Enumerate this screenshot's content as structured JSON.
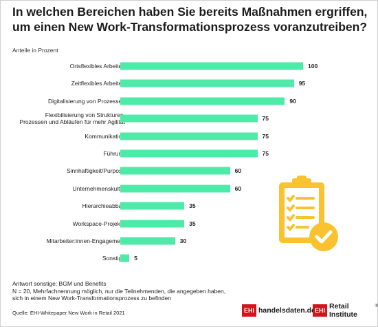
{
  "title_line1": "In welchen Bereichen haben Sie bereits Maßnahmen ergriffen,",
  "title_line2": "um einen New Work-Transformationsprozess voranzutreiben?",
  "unit_label": "Anteile in Prozent",
  "colors": {
    "bar": "#4eeaa8",
    "accent": "#f9c22e",
    "brand_red": "#d7121a"
  },
  "chart_data": {
    "type": "bar",
    "orientation": "horizontal",
    "ylabel": "Anteile in Prozent",
    "categories": [
      [
        "Ortsflexibles Arbeiten"
      ],
      [
        "Zeitflexibles Arbeiten"
      ],
      [
        "Digitalisierung von Prozessen"
      ],
      [
        "Flexibilisierung von Strukturen,",
        "Prozessen und Abläufen für mehr Agilität"
      ],
      [
        "Kommunikation"
      ],
      [
        "Führung"
      ],
      [
        "Sinnhaftigkeit/Purpose"
      ],
      [
        "Unternehmenskultur"
      ],
      [
        "Hierarchieabbau"
      ],
      [
        "Workspace-Projekte"
      ],
      [
        "Mitarbeiter:innen-Engagement"
      ],
      [
        "Sonstige"
      ]
    ],
    "values": [
      100,
      95,
      90,
      75,
      75,
      75,
      60,
      60,
      35,
      35,
      30,
      5
    ],
    "xlim": [
      0,
      100
    ],
    "grid": false
  },
  "notes": {
    "line1": "Antwort sonstige: BGM und Benefits",
    "line2": "N = 20, Mehrfachnennung möglich, nur die Teilnehmenden, die angegeben haben,",
    "line3": "sich in einem New Work-Transformationsprozess zu befinden"
  },
  "source": "Quelle: EHI-Whitepaper New Work in Retail 2021",
  "logos": {
    "left_box": "EHI",
    "left_text": "handelsdaten.de",
    "right_box": "EHI",
    "right_text": "Retail Institute",
    "right_mark": "®"
  },
  "illustration_icon": "clipboard-checklist-icon"
}
